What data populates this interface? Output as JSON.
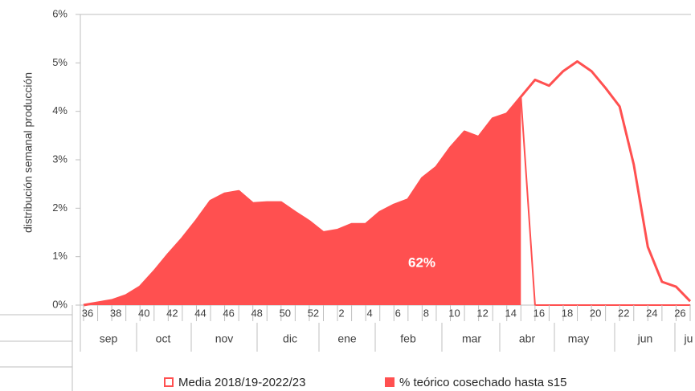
{
  "chart_data": {
    "type": "area",
    "y_label": "distribución semanal producción",
    "categories": [
      "36",
      null,
      "38",
      null,
      "40",
      null,
      "42",
      null,
      "44",
      null,
      "46",
      null,
      "48",
      null,
      "50",
      null,
      "52",
      null,
      "2",
      null,
      "4",
      null,
      "6",
      null,
      "8",
      null,
      "10",
      null,
      "12",
      null,
      "14",
      null,
      "16",
      null,
      "18",
      null,
      "20",
      null,
      "22",
      null,
      "24",
      null,
      "26",
      null
    ],
    "months": [
      "sep",
      "oct",
      "nov",
      "dic",
      "ene",
      "feb",
      "mar",
      "abr",
      "may",
      "jun",
      "ju"
    ],
    "series": [
      {
        "name": "Media 2018/19-2022/23",
        "color": "#ff5050",
        "fill": false,
        "values": [
          0.0,
          0.05,
          0.1,
          0.2,
          0.38,
          0.7,
          1.05,
          1.38,
          1.75,
          2.15,
          2.3,
          2.35,
          2.1,
          2.12,
          2.12,
          1.92,
          1.73,
          1.5,
          1.55,
          1.67,
          1.67,
          1.92,
          2.07,
          2.18,
          2.62,
          2.85,
          3.25,
          3.58,
          3.47,
          3.85,
          3.95,
          4.3,
          4.65,
          4.53,
          4.83,
          5.03,
          4.83,
          4.48,
          4.1,
          2.9,
          1.2,
          0.48,
          0.38,
          0.08
        ]
      },
      {
        "name": "% teórico cosechado hasta s15",
        "color": "#ff5050",
        "fill": true,
        "values": [
          0.0,
          0.05,
          0.1,
          0.2,
          0.38,
          0.7,
          1.05,
          1.38,
          1.75,
          2.15,
          2.3,
          2.35,
          2.1,
          2.12,
          2.12,
          1.92,
          1.73,
          1.5,
          1.55,
          1.67,
          1.67,
          1.92,
          2.07,
          2.18,
          2.62,
          2.85,
          3.25,
          3.58,
          3.47,
          3.85,
          3.95,
          4.3,
          0,
          0,
          0,
          0,
          0,
          0,
          0,
          0,
          0,
          0,
          0,
          0
        ]
      }
    ],
    "annotation": "62%",
    "ylim": [
      0,
      6
    ],
    "yticks": [
      {
        "value": 0,
        "label": "0%"
      },
      {
        "value": 1,
        "label": "1%"
      },
      {
        "value": 2,
        "label": "2%"
      },
      {
        "value": 3,
        "label": "3%"
      },
      {
        "value": 4,
        "label": "4%"
      },
      {
        "value": 5,
        "label": "5%"
      },
      {
        "value": 6,
        "label": "6%"
      }
    ],
    "grid": false
  }
}
